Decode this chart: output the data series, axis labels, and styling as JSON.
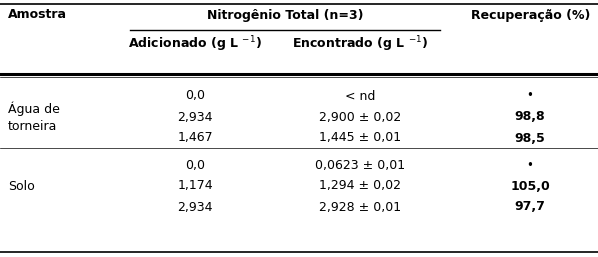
{
  "col_headers_top": "Nitrогênio Total (n=3)",
  "col_header_1": "Adicionado (g L $^{-1}$)",
  "col_header_2": "Encontrado (g L $^{-1}$)",
  "col_header_rec": "Recuperação (%)",
  "col_header_amostra": "Amostra",
  "section1_label": "Água de\ntorneira",
  "section2_label": "Solo",
  "rows": [
    [
      "0,0",
      "< nd",
      "-"
    ],
    [
      "2,934",
      "2,900 ± 0,02",
      "98,8"
    ],
    [
      "1,467",
      "1,445 ± 0,01",
      "98,5"
    ],
    [
      "0,0",
      "0,0623 ± 0,01",
      "-"
    ],
    [
      "1,174",
      "1,294 ± 0,02",
      "105,0"
    ],
    [
      "2,934",
      "2,928 ± 0,01",
      "97,7"
    ]
  ],
  "bold_recovery": [
    "98,8",
    "98,5",
    "105,0",
    "97,7"
  ],
  "background_color": "#ffffff",
  "text_color": "#000000",
  "font_family": "DejaVu Sans",
  "font_size": 8.5
}
